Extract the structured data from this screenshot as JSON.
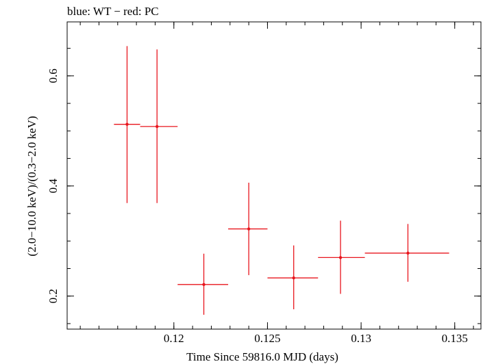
{
  "chart_data": {
    "type": "scatter",
    "title": "blue: WT − red: PC",
    "xlabel": "Time Since 59816.0 MJD (days)",
    "ylabel": "(2.0−10.0 keV)/(0.3−2.0 keV)",
    "xlim": [
      0.1143,
      0.1364
    ],
    "ylim": [
      0.14,
      0.698
    ],
    "x_ticks": [
      "0.12",
      "0.125",
      "0.13",
      "0.135"
    ],
    "x_tick_values": [
      0.12,
      0.125,
      0.13,
      0.135
    ],
    "y_ticks": [
      "0.2",
      "0.4",
      "0.6"
    ],
    "y_tick_values": [
      0.2,
      0.4,
      0.6
    ],
    "grid": false,
    "color": "#e8141c",
    "series": [
      {
        "points": [
          {
            "x": 0.1175,
            "y": 0.512,
            "xerr": [
              0.1168,
              0.1182
            ],
            "yerr": [
              0.369,
              0.654
            ]
          },
          {
            "x": 0.1191,
            "y": 0.508,
            "xerr": [
              0.1182,
              0.1202
            ],
            "yerr": [
              0.369,
              0.648
            ]
          },
          {
            "x": 0.1216,
            "y": 0.221,
            "xerr": [
              0.1202,
              0.1229
            ],
            "yerr": [
              0.166,
              0.277
            ]
          },
          {
            "x": 0.124,
            "y": 0.322,
            "xerr": [
              0.1229,
              0.125
            ],
            "yerr": [
              0.238,
              0.406
            ]
          },
          {
            "x": 0.1264,
            "y": 0.233,
            "xerr": [
              0.125,
              0.1277
            ],
            "yerr": [
              0.176,
              0.292
            ]
          },
          {
            "x": 0.1289,
            "y": 0.27,
            "xerr": [
              0.1277,
              0.1302
            ],
            "yerr": [
              0.204,
              0.337
            ]
          },
          {
            "x": 0.1325,
            "y": 0.278,
            "xerr": [
              0.1302,
              0.1347
            ],
            "yerr": [
              0.226,
              0.331
            ]
          }
        ]
      }
    ]
  }
}
